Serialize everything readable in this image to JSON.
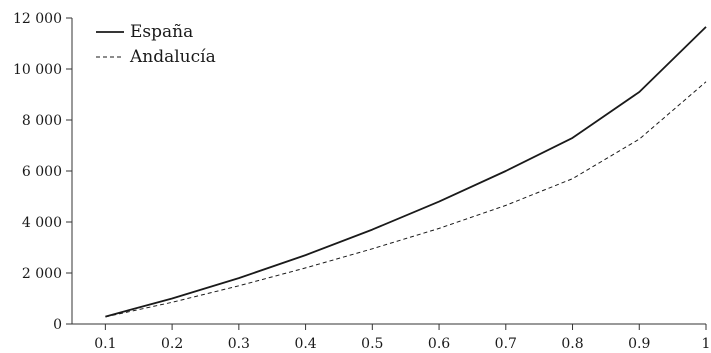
{
  "chart_data": {
    "type": "line",
    "title": "",
    "xlabel": "",
    "ylabel": "",
    "x": [
      0.1,
      0.2,
      0.3,
      0.4,
      0.5,
      0.6,
      0.7,
      0.8,
      0.9,
      1.0
    ],
    "x_tick_labels": [
      "0.1",
      "0.2",
      "0.3",
      "0.4",
      "0.5",
      "0.6",
      "0.7",
      "0.8",
      "0.9",
      "1"
    ],
    "y_tick_labels": [
      "0",
      "2 000",
      "4 000",
      "6 000",
      "8 000",
      "10 000",
      "12 000"
    ],
    "y_ticks": [
      0,
      2000,
      4000,
      6000,
      8000,
      10000,
      12000
    ],
    "ylim": [
      0,
      12000
    ],
    "xlim": [
      0.05,
      1.0
    ],
    "grid": false,
    "legend_position": "top-left",
    "series": [
      {
        "name": "España",
        "style": "solid",
        "color": "#1a1a1a",
        "values": [
          290,
          1000,
          1800,
          2700,
          3700,
          4800,
          6000,
          7300,
          9100,
          11650
        ]
      },
      {
        "name": "Andalucía",
        "style": "dashed",
        "color": "#1a1a1a",
        "values": [
          280,
          850,
          1500,
          2200,
          2950,
          3750,
          4650,
          5700,
          7250,
          9500
        ]
      }
    ]
  }
}
